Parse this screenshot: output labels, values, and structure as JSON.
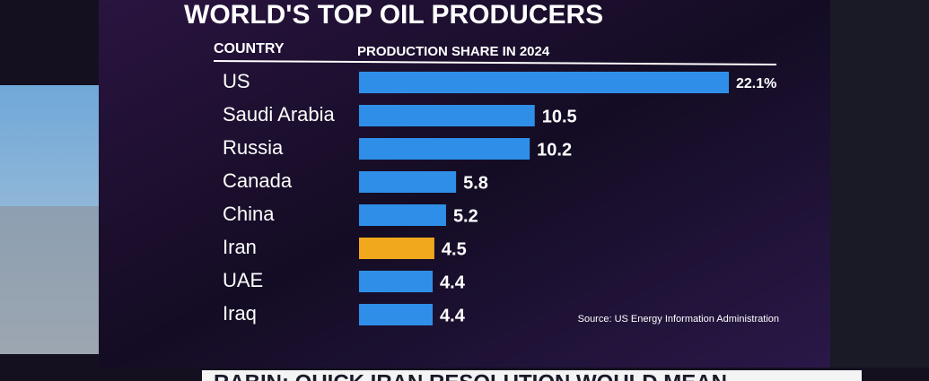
{
  "chart_data": {
    "type": "bar",
    "orientation": "horizontal",
    "title": "WORLD'S TOP OIL PRODUCERS",
    "category_header": "COUNTRY",
    "value_header": "PRODUCTION SHARE IN 2024",
    "categories": [
      "US",
      "Saudi Arabia",
      "Russia",
      "Canada",
      "China",
      "Iran",
      "UAE",
      "Iraq"
    ],
    "values": [
      22.1,
      10.5,
      10.2,
      5.8,
      5.2,
      4.5,
      4.4,
      4.4
    ],
    "value_labels": [
      "22.1%",
      "10.5",
      "10.2",
      "5.8",
      "5.2",
      "4.5",
      "4.4",
      "4.4"
    ],
    "colors": [
      "#2f8fe8",
      "#2f8fe8",
      "#2f8fe8",
      "#2f8fe8",
      "#2f8fe8",
      "#f2a81c",
      "#2f8fe8",
      "#2f8fe8"
    ],
    "source": "Source: US Energy Information Administration",
    "ticker": "RABIN: QUICK IRAN RESOLUTION WOULD MEAN"
  }
}
